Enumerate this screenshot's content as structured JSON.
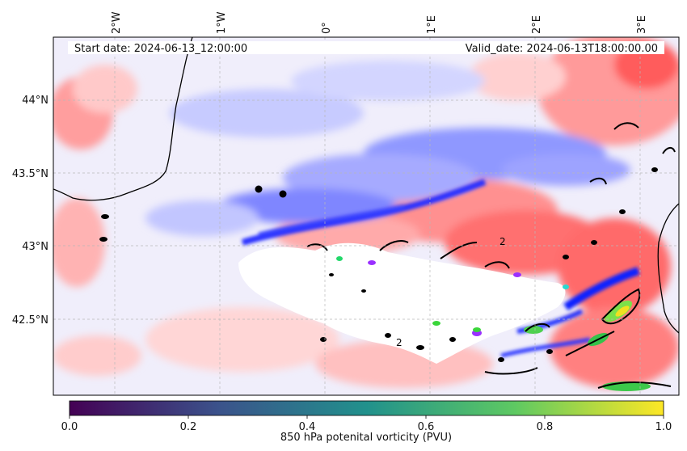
{
  "map": {
    "start_date": "Start date: 2024-06-13_12:00:00",
    "valid_date": "Valid_date: 2024-06-13T18:00:00.00",
    "lon_ticks": [
      "2°W",
      "1°W",
      "0°",
      "1°E",
      "2°E",
      "3°E"
    ],
    "lat_ticks": [
      "44°N",
      "43.5°N",
      "43°N",
      "42.5°N"
    ],
    "lon_range": [
      -2.5,
      3.3
    ],
    "lat_range": [
      42.0,
      44.45
    ],
    "gridlines": true,
    "field": "850 hPa potential vorticity anomaly (red positive, blue negative)",
    "points": [
      {
        "lon": -0.63,
        "lat": 43.39
      },
      {
        "lon": -0.4,
        "lat": 43.36
      }
    ],
    "contour_labels": [
      "2",
      "2"
    ]
  },
  "colorbar": {
    "label": "850 hPa potenital vorticity (PVU)",
    "colormap": "viridis",
    "range": [
      0.0,
      1.0
    ],
    "ticks": [
      "0.0",
      "0.2",
      "0.4",
      "0.6",
      "0.8",
      "1.0"
    ],
    "colors": [
      "#440154",
      "#3b528b",
      "#21918c",
      "#5ec962",
      "#fde725"
    ]
  }
}
